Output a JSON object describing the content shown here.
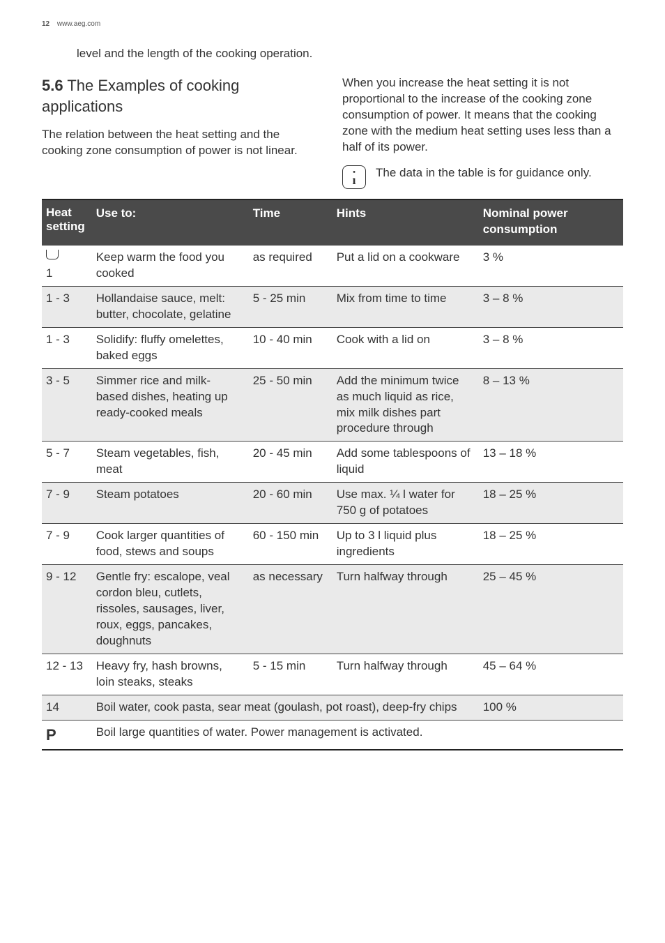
{
  "header": {
    "page_number": "12",
    "site": "www.aeg.com"
  },
  "lead_in": "level and the length of the cooking operation.",
  "section": {
    "number": "5.6",
    "title": "The Examples of cooking applications"
  },
  "left_para": "The relation between the heat setting and the cooking zone consumption of power is not linear.",
  "right_para": "When you increase the heat setting it is not proportional to the increase of the cooking zone consumption of power. It means that the cooking zone with the medium heat setting uses less than a half of its power.",
  "info_note": "The data in the table is for guidance only.",
  "table": {
    "columns": {
      "heat": "Heat setting",
      "use": "Use to:",
      "time": "Time",
      "hints": "Hints",
      "power": "Nominal power consumption"
    },
    "rows": [
      {
        "heat_icon": "keepwarm",
        "heat": "1",
        "use": "Keep warm the food you cooked",
        "time": "as required",
        "hints": "Put a lid on a cookware",
        "power": "3 %",
        "span": 5
      },
      {
        "heat": "1 - 3",
        "use": "Hollandaise sauce, melt: butter, chocolate, gelatine",
        "time": "5 - 25 min",
        "hints": "Mix from time to time",
        "power": "3 – 8 %",
        "span": 5
      },
      {
        "heat": "1 - 3",
        "use": "Solidify: fluffy omelettes, baked eggs",
        "time": "10 - 40 min",
        "hints": "Cook with a lid on",
        "power": "3 – 8 %",
        "span": 5
      },
      {
        "heat": "3 - 5",
        "use": "Simmer rice and milk-based dishes, heating up ready-cooked meals",
        "time": "25 - 50 min",
        "hints": "Add the minimum twice as much liquid as rice, mix milk dishes part procedure through",
        "power": "8 – 13 %",
        "span": 5
      },
      {
        "heat": "5 - 7",
        "use": "Steam vegetables, fish, meat",
        "time": "20 - 45 min",
        "hints": "Add some tablespoons of liquid",
        "power": "13 – 18 %",
        "span": 5
      },
      {
        "heat": "7 - 9",
        "use": "Steam potatoes",
        "time": "20 - 60 min",
        "hints": "Use max. ¼ l water for 750 g of potatoes",
        "power": "18 – 25 %",
        "span": 5
      },
      {
        "heat": "7 - 9",
        "use": "Cook larger quantities of food, stews and soups",
        "time": "60 - 150 min",
        "hints": "Up to 3 l liquid plus ingredients",
        "power": "18 – 25 %",
        "span": 5
      },
      {
        "heat": "9 - 12",
        "use": "Gentle fry: escalope, veal cordon bleu, cutlets, rissoles, sausages, liver, roux, eggs, pancakes, doughnuts",
        "time": "as necessary",
        "hints": "Turn halfway through",
        "power": "25 – 45 %",
        "span": 5
      },
      {
        "heat": "12 - 13",
        "use": "Heavy fry, hash browns, loin steaks, steaks",
        "time": "5 - 15 min",
        "hints": "Turn halfway through",
        "power": "45 – 64 %",
        "span": 5
      },
      {
        "heat": "14",
        "use": "Boil water, cook pasta, sear meat (goulash, pot roast), deep-fry chips",
        "power": "100 %",
        "span": 4
      },
      {
        "heat_icon": "P",
        "use": "Boil large quantities of water. Power management is activated.",
        "span": 4,
        "no_power": true
      }
    ]
  }
}
